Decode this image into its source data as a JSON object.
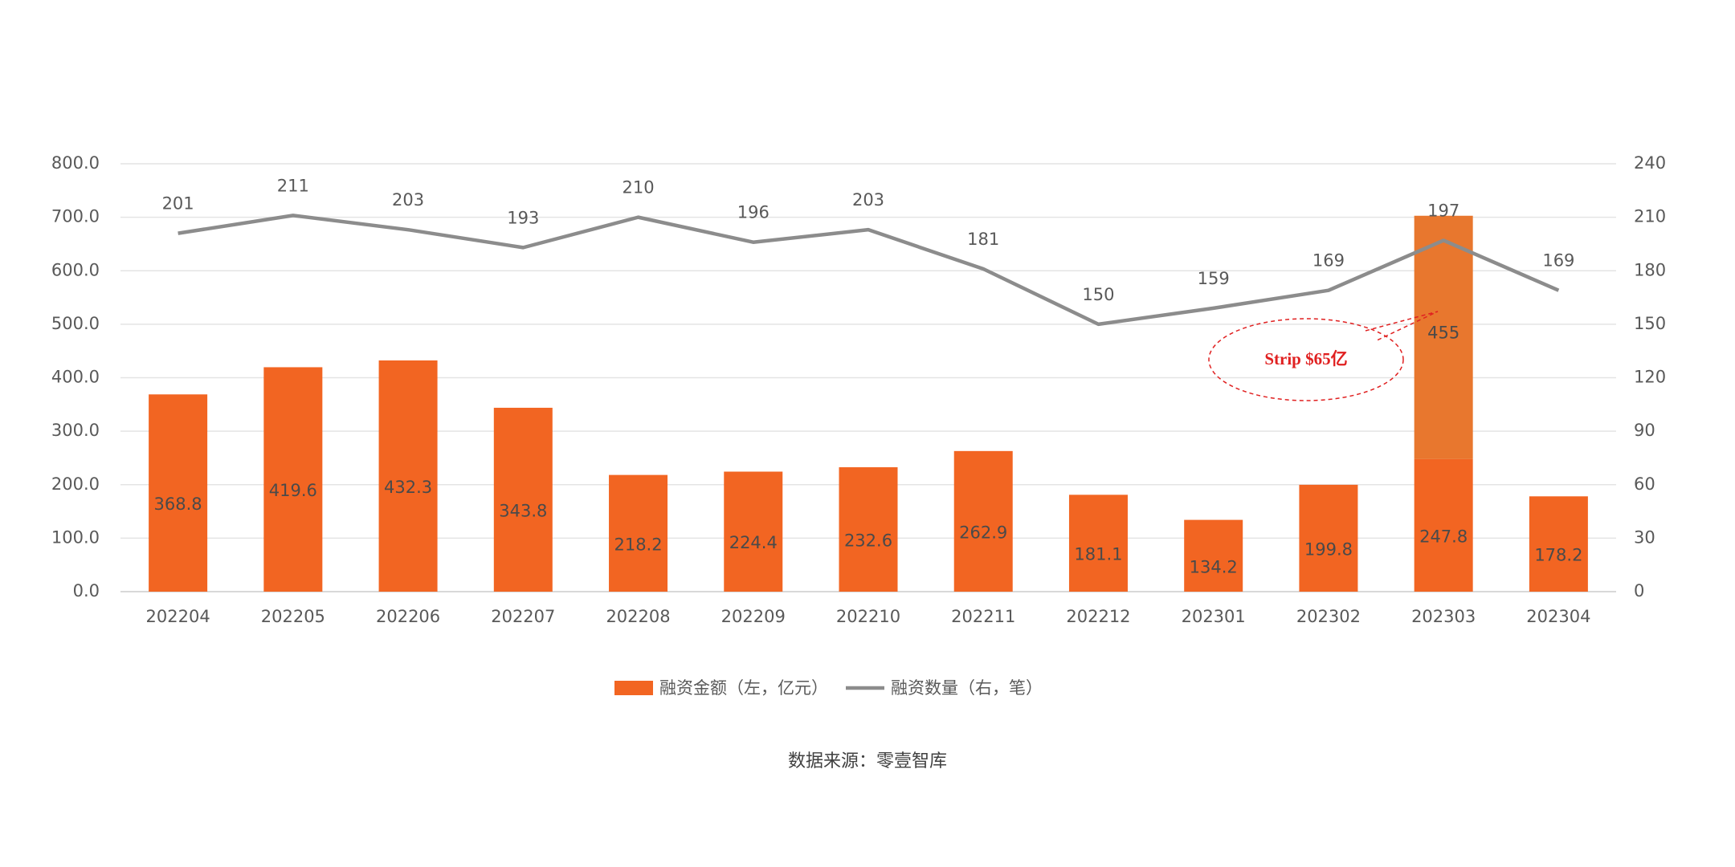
{
  "chart_data": {
    "type": "bar-line",
    "categories": [
      "202204",
      "202205",
      "202206",
      "202207",
      "202208",
      "202209",
      "202210",
      "202211",
      "202212",
      "202301",
      "202302",
      "202303",
      "202304"
    ],
    "series": [
      {
        "name": "融资金额（左，亿元）",
        "color": "#f26522",
        "values": [
          368.8,
          419.6,
          432.3,
          343.8,
          218.2,
          224.4,
          232.6,
          262.9,
          181.1,
          134.2,
          199.8,
          247.8,
          178.2
        ]
      },
      {
        "color": "#e8772e",
        "values": [
          null,
          null,
          null,
          null,
          null,
          null,
          null,
          null,
          null,
          null,
          null,
          455,
          null
        ]
      },
      {
        "name": "融资数量（右，笔）",
        "color": "#8c8c8c",
        "axis": "y2",
        "values": [
          201,
          211,
          203,
          193,
          210,
          196,
          203,
          181,
          150,
          159,
          169,
          197,
          169
        ]
      }
    ],
    "ylim": [
      0,
      800
    ],
    "yticks": [
      {
        "value": 0,
        "label": "0.0"
      },
      {
        "value": 100,
        "label": "100.0"
      },
      {
        "value": 200,
        "label": "200.0"
      },
      {
        "value": 300,
        "label": "300.0"
      },
      {
        "value": 400,
        "label": "400.0"
      },
      {
        "value": 500,
        "label": "500.0"
      },
      {
        "value": 600,
        "label": "600.0"
      },
      {
        "value": 700,
        "label": "700.0"
      },
      {
        "value": 800,
        "label": "800.0"
      }
    ],
    "y2lim": [
      0,
      240
    ],
    "y2ticks": [
      0,
      30,
      60,
      90,
      120,
      150,
      180,
      210,
      240
    ],
    "grid": true,
    "annotation": "Strip $65亿",
    "source": "数据来源：零壹智库"
  }
}
